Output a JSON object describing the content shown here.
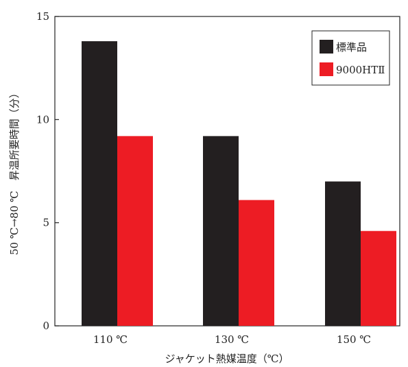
{
  "chart_data": {
    "type": "bar",
    "title": "",
    "categories": [
      "110 ℃",
      "130 ℃",
      "150 ℃"
    ],
    "series": [
      {
        "name": "標準品",
        "values": [
          13.8,
          9.2,
          7.0
        ],
        "color": "#231f20"
      },
      {
        "name": "9000HTⅡ",
        "values": [
          9.2,
          6.1,
          4.6
        ],
        "color": "#ed1c24"
      }
    ],
    "xlabel": "ジャケット熱媒温度（℃）",
    "ylabel": "50 ℃→80 ℃　昇温所要時間（分）",
    "ylim": [
      0,
      15
    ],
    "yticks": [
      0,
      5,
      10,
      15
    ],
    "grid": false,
    "legend": {
      "position": "top-right",
      "frame": true
    }
  }
}
